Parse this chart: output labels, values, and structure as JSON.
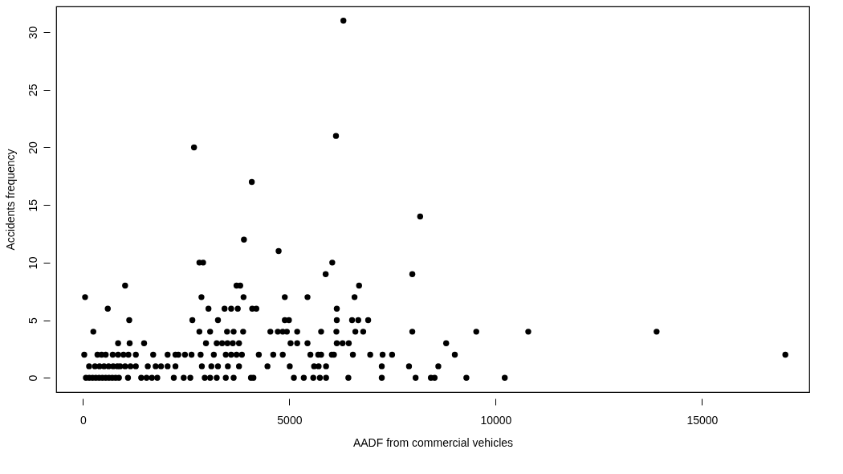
{
  "chart_data": {
    "type": "scatter",
    "xlabel": "AADF from commercial vehicles",
    "ylabel": "Accidents frequency",
    "xlim": [
      -650,
      17600
    ],
    "ylim": [
      -1.24,
      32.24
    ],
    "xticks": [
      0,
      5000,
      10000,
      15000
    ],
    "yticks": [
      0,
      5,
      10,
      15,
      20,
      25,
      30
    ],
    "marker": "circle",
    "series": [
      {
        "color": "#000000",
        "x": [
          70,
          150,
          230,
          310,
          390,
          470,
          550,
          630,
          710,
          790,
          870,
          1090,
          1410,
          1540,
          1670,
          1800,
          2200,
          2440,
          2600,
          2950,
          3080,
          3240,
          3460,
          3650,
          4070,
          4130,
          5110,
          5350,
          5580,
          5740,
          5890,
          6430,
          7240,
          8060,
          8430,
          8520,
          9290,
          10220,
          147,
          290,
          400,
          510,
          620,
          730,
          830,
          900,
          1020,
          1150,
          1280,
          1570,
          1760,
          1890,
          2050,
          2240,
          2880,
          3110,
          3270,
          3510,
          3780,
          4470,
          5010,
          5600,
          5710,
          5890,
          7240,
          7900,
          8610,
          30,
          350,
          450,
          550,
          720,
          850,
          980,
          1100,
          1280,
          1700,
          2050,
          2240,
          2310,
          2470,
          2630,
          2850,
          3170,
          3460,
          3590,
          3720,
          3850,
          4260,
          4610,
          4840,
          5510,
          5700,
          5770,
          6030,
          6080,
          6540,
          6960,
          7260,
          7490,
          9010,
          17020,
          850,
          1130,
          1480,
          2980,
          3240,
          3370,
          3500,
          3630,
          3780,
          5030,
          5190,
          5440,
          6150,
          6290,
          6440,
          8800,
          250,
          2820,
          3080,
          3490,
          3650,
          3880,
          4540,
          4720,
          4840,
          4940,
          5190,
          5770,
          6140,
          6600,
          6790,
          7980,
          9530,
          10790,
          13900,
          1120,
          2650,
          3270,
          4890,
          4990,
          6150,
          6520,
          6670,
          6910,
          600,
          3040,
          3430,
          3590,
          3750,
          4100,
          4200,
          6150,
          50,
          2870,
          3890,
          4890,
          5440,
          6580,
          1020,
          3720,
          3810,
          6690,
          5880,
          7980,
          2820,
          2910,
          6040,
          4740,
          3900,
          8170,
          4090,
          2690,
          6130,
          6310
        ],
        "values": [
          0,
          0,
          0,
          0,
          0,
          0,
          0,
          0,
          0,
          0,
          0,
          0,
          0,
          0,
          0,
          0,
          0,
          0,
          0,
          0,
          0,
          0,
          0,
          0,
          0,
          0,
          0,
          0,
          0,
          0,
          0,
          0,
          0,
          0,
          0,
          0,
          0,
          0,
          1,
          1,
          1,
          1,
          1,
          1,
          1,
          1,
          1,
          1,
          1,
          1,
          1,
          1,
          1,
          1,
          1,
          1,
          1,
          1,
          1,
          1,
          1,
          1,
          1,
          1,
          1,
          1,
          1,
          2,
          2,
          2,
          2,
          2,
          2,
          2,
          2,
          2,
          2,
          2,
          2,
          2,
          2,
          2,
          2,
          2,
          2,
          2,
          2,
          2,
          2,
          2,
          2,
          2,
          2,
          2,
          2,
          2,
          2,
          2,
          2,
          2,
          2,
          2,
          3,
          3,
          3,
          3,
          3,
          3,
          3,
          3,
          3,
          3,
          3,
          3,
          3,
          3,
          3,
          3,
          4,
          4,
          4,
          4,
          4,
          4,
          4,
          4,
          4,
          4,
          4,
          4,
          4,
          4,
          4,
          4,
          4,
          4,
          4,
          5,
          5,
          5,
          5,
          5,
          5,
          5,
          5,
          5,
          6,
          6,
          6,
          6,
          6,
          6,
          6,
          6,
          7,
          7,
          7,
          7,
          7,
          7,
          8,
          8,
          8,
          8,
          9,
          9,
          10,
          10,
          10,
          11,
          12,
          14,
          17,
          20,
          21,
          31
        ]
      }
    ]
  }
}
